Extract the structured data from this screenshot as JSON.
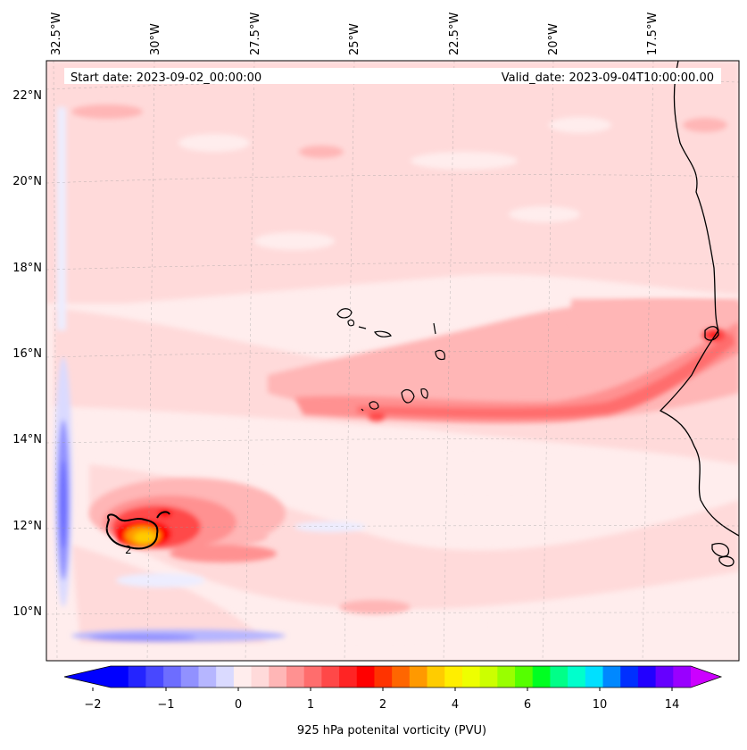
{
  "map": {
    "start_date": "Start date: 2023-09-02_00:00:00",
    "valid_date": "Valid_date: 2023-09-04T10:00:00.00",
    "lon_labels": [
      "32.5°W",
      "30°W",
      "27.5°W",
      "25°W",
      "22.5°W",
      "20°W",
      "17.5°W"
    ],
    "lat_labels": [
      "22°N",
      "20°N",
      "18°N",
      "16°N",
      "14°N",
      "12°N",
      "10°N"
    ],
    "contour_label": "2",
    "extent": {
      "lon_min": -32.5,
      "lon_max": -15.8,
      "lat_min": 8.9,
      "lat_max": 22.8
    }
  },
  "colorbar": {
    "title": "925 hPa potenital vorticity (PVU)",
    "tick_labels": [
      "−2",
      "−1",
      "0",
      "1",
      "2",
      "4",
      "6",
      "10",
      "14"
    ],
    "levels": [
      -2,
      -1.75,
      -1.5,
      -1.25,
      -1,
      -0.75,
      -0.5,
      -0.25,
      0,
      0.25,
      0.5,
      0.75,
      1,
      1.25,
      1.5,
      1.75,
      2,
      2.5,
      3,
      3.5,
      4,
      4.5,
      5,
      5.5,
      6,
      7,
      8,
      9,
      10,
      11,
      12,
      13,
      14,
      15
    ],
    "colors": [
      "#0000ff",
      "#2424ff",
      "#4848ff",
      "#6d6dff",
      "#9191ff",
      "#b6b6ff",
      "#dadaff",
      "#ffeded",
      "#ffdada",
      "#ffb6b6",
      "#ff9191",
      "#ff6d6d",
      "#ff4848",
      "#ff2424",
      "#ff0000",
      "#ff3300",
      "#ff6600",
      "#ff9900",
      "#ffcc00",
      "#ffee00",
      "#eeff00",
      "#ccff00",
      "#99ff00",
      "#55ff00",
      "#00ff22",
      "#00ff88",
      "#00ffcc",
      "#00e0ff",
      "#0088ff",
      "#0030ff",
      "#2200ff",
      "#6600ff",
      "#9900ff"
    ],
    "under_color": "#0000ff",
    "over_color": "#cc00ff"
  }
}
